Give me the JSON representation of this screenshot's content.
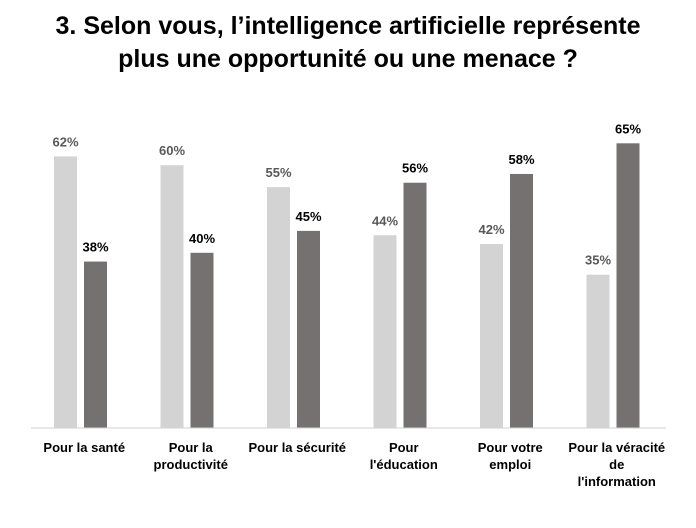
{
  "chart_data": {
    "type": "bar",
    "title": "3. Selon vous, l’intelligence artificielle représente plus une opportunité ou une menace ?",
    "title_lines": [
      "3. Selon vous, l’intelligence artificielle représente",
      "plus une opportunité ou une menace ?"
    ],
    "categories": [
      "Pour la santé",
      "Pour la productivité",
      "Pour la sécurité",
      "Pour l'éducation",
      "Pour votre emploi",
      "Pour la véracité de l'information"
    ],
    "category_lines": [
      [
        "Pour la santé"
      ],
      [
        "Pour la",
        "productivité"
      ],
      [
        "Pour la sécurité"
      ],
      [
        "Pour",
        "l'éducation"
      ],
      [
        "Pour votre",
        "emploi"
      ],
      [
        "Pour la véracité",
        "de",
        "l'information"
      ]
    ],
    "series": [
      {
        "values": [
          62,
          60,
          55,
          44,
          42,
          35
        ],
        "labels": [
          "62%",
          "60%",
          "55%",
          "44%",
          "42%",
          "35%"
        ],
        "color": "#d3d3d3",
        "label_color": "#595959"
      },
      {
        "values": [
          38,
          40,
          45,
          56,
          58,
          65
        ],
        "labels": [
          "38%",
          "40%",
          "45%",
          "56%",
          "58%",
          "65%"
        ],
        "color": "#757171",
        "label_color": "#000000"
      }
    ],
    "ylim": [
      0,
      100
    ],
    "grid": false,
    "legend": "none",
    "xlabel": "",
    "ylabel": ""
  }
}
